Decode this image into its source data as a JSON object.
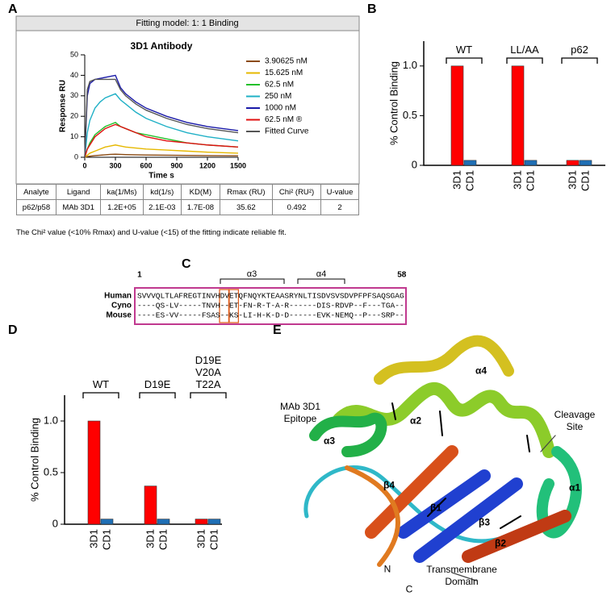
{
  "panel_labels": [
    "A",
    "B",
    "C",
    "D",
    "E"
  ],
  "fit_header": "Fitting model: 1: 1 Binding",
  "fit_table": {
    "header": [
      "Analyte",
      "Ligand",
      "ka(1/Ms)",
      "kd(1/s)",
      "KD(M)",
      "Rmax (RU)",
      "Chi² (RU²)",
      "U-value"
    ],
    "rows": [
      [
        "p62/p58",
        "MAb 3D1",
        "1.2E+05",
        "2.1E-03",
        "1.7E-08",
        "35.62",
        "0.492",
        "2"
      ]
    ]
  },
  "fit_note": "The Chi² value (<10% Rmax) and U-value (<15) of the fitting indicate reliable fit.",
  "chart_data": [
    {
      "type": "line",
      "title": "3D1 Antibody",
      "x_label": "Time s",
      "y_label": "Response RU",
      "x": [
        0,
        25,
        50,
        100,
        150,
        200,
        250,
        300,
        350,
        400,
        500,
        600,
        800,
        1000,
        1200,
        1500
      ],
      "xlim": [
        0,
        1500
      ],
      "xticks": [
        0,
        300,
        600,
        900,
        1200,
        1500
      ],
      "ylim": [
        0,
        50
      ],
      "yticks": [
        0,
        10,
        20,
        30,
        40,
        50
      ],
      "series": [
        {
          "name": "3.90625 nM",
          "color": "#8b4a12",
          "values": [
            0,
            0.3,
            0.5,
            0.8,
            1,
            1.2,
            1.4,
            1.5,
            1.4,
            1.3,
            1.2,
            1.1,
            1,
            0.9,
            0.8,
            0.7
          ]
        },
        {
          "name": "15.625 nM",
          "color": "#e6b800",
          "values": [
            0,
            1,
            2,
            3,
            4,
            5,
            5.5,
            6,
            5.5,
            5,
            4.5,
            4,
            3.5,
            3,
            2.5,
            2
          ]
        },
        {
          "name": "62.5 nM",
          "color": "#22c02a",
          "values": [
            0,
            4,
            7,
            11,
            13,
            15,
            16,
            17,
            15,
            14,
            12,
            11,
            9,
            7,
            6,
            5
          ]
        },
        {
          "name": "250 nM",
          "color": "#1fb0c6",
          "values": [
            0,
            12,
            18,
            24,
            27,
            29,
            30,
            31,
            28,
            26,
            22,
            19,
            15,
            12,
            10,
            8
          ]
        },
        {
          "name": "1000 nM",
          "color": "#1a1aa8",
          "values": [
            0,
            30,
            36,
            38,
            38.5,
            39,
            39.5,
            40,
            34,
            31,
            27,
            24,
            20,
            17,
            15,
            13
          ]
        },
        {
          "name": "62.5 nM ®",
          "color": "#e01010",
          "values": [
            0,
            4,
            6,
            10,
            12,
            14,
            15,
            16,
            15,
            14,
            12,
            10,
            8,
            7,
            6,
            5
          ]
        },
        {
          "name": "Fitted Curve",
          "color": "#555555",
          "values": [
            0,
            33,
            37,
            38,
            38,
            38,
            38,
            38,
            33,
            30,
            26,
            23,
            19,
            16,
            14,
            12
          ]
        }
      ]
    },
    {
      "type": "bar",
      "y_label": "% Control Binding",
      "categories": [
        "WT",
        "LL/AA",
        "p62"
      ],
      "ylim": [
        0,
        1.25
      ],
      "yticks": [
        0,
        0.5,
        {
          "value": 1,
          "label": "1.0"
        }
      ],
      "series": [
        {
          "name": "3D1",
          "color": "#ff0000",
          "values": [
            1,
            1,
            0.05
          ]
        },
        {
          "name": "CD1",
          "color": "#1f6fb5",
          "values": [
            0.05,
            0.05,
            0.05
          ]
        }
      ]
    },
    {
      "type": "bar",
      "y_label": "% Control Binding",
      "categories": [
        "WT",
        "D19E",
        "D19E\nV20A\nT22A"
      ],
      "ylim": [
        0,
        1.25
      ],
      "yticks": [
        0,
        0.5,
        {
          "value": 1,
          "label": "1.0"
        }
      ],
      "series": [
        {
          "name": "3D1",
          "color": "#ff0000",
          "values": [
            1,
            0.37,
            0.05
          ]
        },
        {
          "name": "CD1",
          "color": "#1f6fb5",
          "values": [
            0.05,
            0.05,
            0.05
          ]
        }
      ]
    }
  ],
  "alignment": {
    "start": 1,
    "end": 58,
    "helices": [
      "α3",
      "α4"
    ],
    "rows": [
      {
        "name": "Human",
        "sequence": "SVVVQLTLAFREGTINVHDVETQFNQYKTEAASRYNLTISDVSVSDVPFPFSAQSGAG"
      },
      {
        "name": "Cyno",
        "sequence": "----QS-LV-----TNVH--ET-FN-R-T-A-R------DIS-RDVP--F---TGA--"
      },
      {
        "name": "Mouse",
        "sequence": "----ES-VV-----FSAS--KS-LI-H-K-D-D------EVK-NEMQ--P---SRP--"
      }
    ]
  },
  "structure": {
    "labels": [
      "α4",
      "α2",
      "α3",
      "α1",
      "β4",
      "β1",
      "β3",
      "β2",
      "MAb 3D1\nEpitope",
      "Cleavage\nSite",
      "N",
      "C",
      "Transmembrane\nDomain"
    ]
  }
}
